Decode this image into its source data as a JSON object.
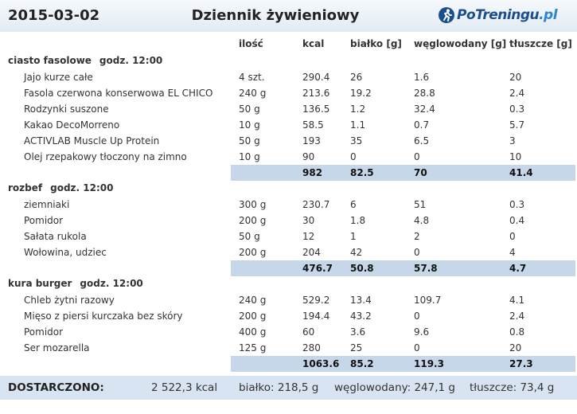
{
  "header": {
    "date": "2015-03-02",
    "title": "Dziennik żywieniowy",
    "logo_main": "PoTreningu",
    "logo_tld": ".pl"
  },
  "columns": {
    "qty": "ilość",
    "kcal": "kcal",
    "protein": "białko [g]",
    "carbs": "węglowodany [g]",
    "fat": "tłuszcze [g]"
  },
  "meals": [
    {
      "name": "ciasto fasolowe",
      "time": "godz. 12:00",
      "items": [
        {
          "name": "Jajo kurze całe",
          "qty": "4 szt.",
          "kcal": "290.4",
          "protein": "26",
          "carbs": "1.6",
          "fat": "20"
        },
        {
          "name": "Fasola czerwona konserwowa EL CHICO",
          "qty": "240 g",
          "kcal": "213.6",
          "protein": "19.2",
          "carbs": "28.8",
          "fat": "2.4"
        },
        {
          "name": "Rodzynki suszone",
          "qty": "50 g",
          "kcal": "136.5",
          "protein": "1.2",
          "carbs": "32.4",
          "fat": "0.3"
        },
        {
          "name": "Kakao DecoMorreno",
          "qty": "10 g",
          "kcal": "58.5",
          "protein": "1.1",
          "carbs": "0.7",
          "fat": "5.7"
        },
        {
          "name": "ACTIVLAB Muscle Up Protein",
          "qty": "50 g",
          "kcal": "193",
          "protein": "35",
          "carbs": "6.5",
          "fat": "3"
        },
        {
          "name": "Olej rzepakowy tłoczony na zimno",
          "qty": "10 g",
          "kcal": "90",
          "protein": "0",
          "carbs": "0",
          "fat": "10"
        }
      ],
      "total": {
        "kcal": "982",
        "protein": "82.5",
        "carbs": "70",
        "fat": "41.4"
      }
    },
    {
      "name": "rozbef",
      "time": "godz. 12:00",
      "items": [
        {
          "name": "ziemniaki",
          "qty": "300 g",
          "kcal": "230.7",
          "protein": "6",
          "carbs": "51",
          "fat": "0.3"
        },
        {
          "name": "Pomidor",
          "qty": "200 g",
          "kcal": "30",
          "protein": "1.8",
          "carbs": "4.8",
          "fat": "0.4"
        },
        {
          "name": "Sałata rukola",
          "qty": "50 g",
          "kcal": "12",
          "protein": "1",
          "carbs": "2",
          "fat": "0"
        },
        {
          "name": "Wołowina, udziec",
          "qty": "200 g",
          "kcal": "204",
          "protein": "42",
          "carbs": "0",
          "fat": "4"
        }
      ],
      "total": {
        "kcal": "476.7",
        "protein": "50.8",
        "carbs": "57.8",
        "fat": "4.7"
      }
    },
    {
      "name": "kura burger",
      "time": "godz. 12:00",
      "items": [
        {
          "name": "Chleb żytni razowy",
          "qty": "240 g",
          "kcal": "529.2",
          "protein": "13.4",
          "carbs": "109.7",
          "fat": "4.1"
        },
        {
          "name": "Mięso z piersi kurczaka bez skóry",
          "qty": "200 g",
          "kcal": "194.4",
          "protein": "43.2",
          "carbs": "0",
          "fat": "2.4"
        },
        {
          "name": "Pomidor",
          "qty": "400 g",
          "kcal": "60",
          "protein": "3.6",
          "carbs": "9.6",
          "fat": "0.8"
        },
        {
          "name": "Ser mozarella",
          "qty": "125 g",
          "kcal": "280",
          "protein": "25",
          "carbs": "0",
          "fat": "20"
        }
      ],
      "total": {
        "kcal": "1063.6",
        "protein": "85.2",
        "carbs": "119.3",
        "fat": "27.3"
      }
    }
  ],
  "summary": {
    "label": "DOSTARCZONO:",
    "kcal": "2 522,3 kcal",
    "protein": "białko: 218,5 g",
    "carbs": "węglowodany: 247,1 g",
    "fat": "tłuszcze: 73,4 g"
  }
}
